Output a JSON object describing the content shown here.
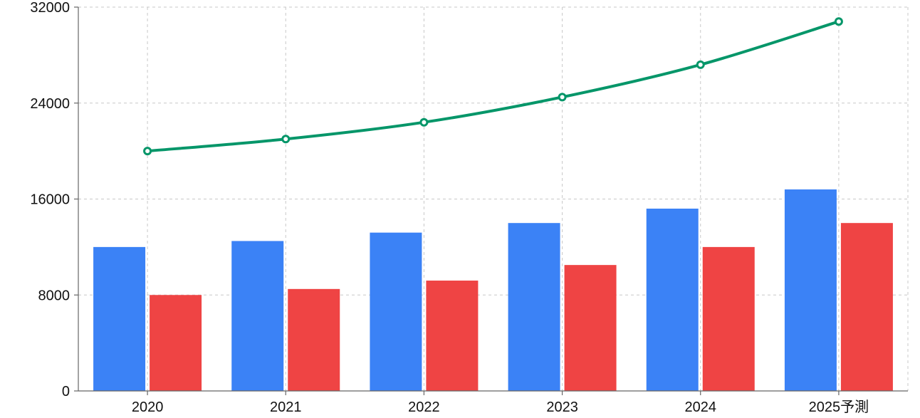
{
  "chart_data": {
    "type": "bar",
    "categories": [
      "2020",
      "2021",
      "2022",
      "2023",
      "2024",
      "2025予測"
    ],
    "series": [
      {
        "type": "bar",
        "color": "#3b82f6",
        "values": [
          12000,
          12500,
          13200,
          14000,
          15200,
          16800
        ]
      },
      {
        "type": "bar",
        "color": "#ef4444",
        "values": [
          8000,
          8500,
          9200,
          10500,
          12000,
          14000
        ]
      },
      {
        "type": "line",
        "color": "#059669",
        "values": [
          20000,
          21000,
          22400,
          24500,
          27200,
          30800
        ]
      }
    ],
    "ylim": [
      0,
      32000
    ],
    "yticks": [
      0,
      8000,
      16000,
      24000,
      32000
    ],
    "title": "",
    "xlabel": "",
    "ylabel": "",
    "grid": true
  }
}
